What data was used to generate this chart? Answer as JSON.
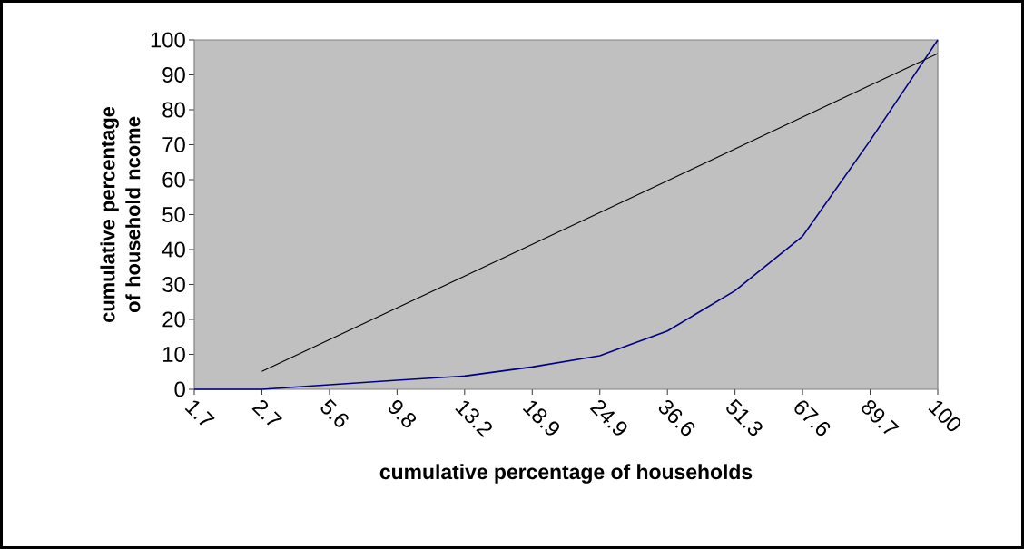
{
  "chart_data": {
    "type": "line",
    "xlabel": "cumulative percentage of households",
    "ylabel": "cumulative percentage of household ncome",
    "categories": [
      "1.7",
      "2.7",
      "5.6",
      "9.8",
      "13.2",
      "18.9",
      "24.9",
      "36.6",
      "51.3",
      "67.6",
      "89.7",
      "100"
    ],
    "series": [
      {
        "color": "#000080",
        "values": [
          0,
          0,
          1.3,
          2.6,
          3.8,
          6.4,
          9.6,
          16.7,
          28.2,
          43.8,
          71.2,
          100
        ]
      },
      {
        "color": "#000000",
        "values": [
          null,
          5.1,
          14.2,
          23.3,
          32.4,
          41.5,
          50.6,
          59.7,
          68.8,
          77.9,
          87,
          96.1
        ]
      }
    ],
    "ylim": [
      0,
      100
    ],
    "yticks": [
      0,
      10,
      20,
      30,
      40,
      50,
      60,
      70,
      80,
      90,
      100
    ]
  }
}
